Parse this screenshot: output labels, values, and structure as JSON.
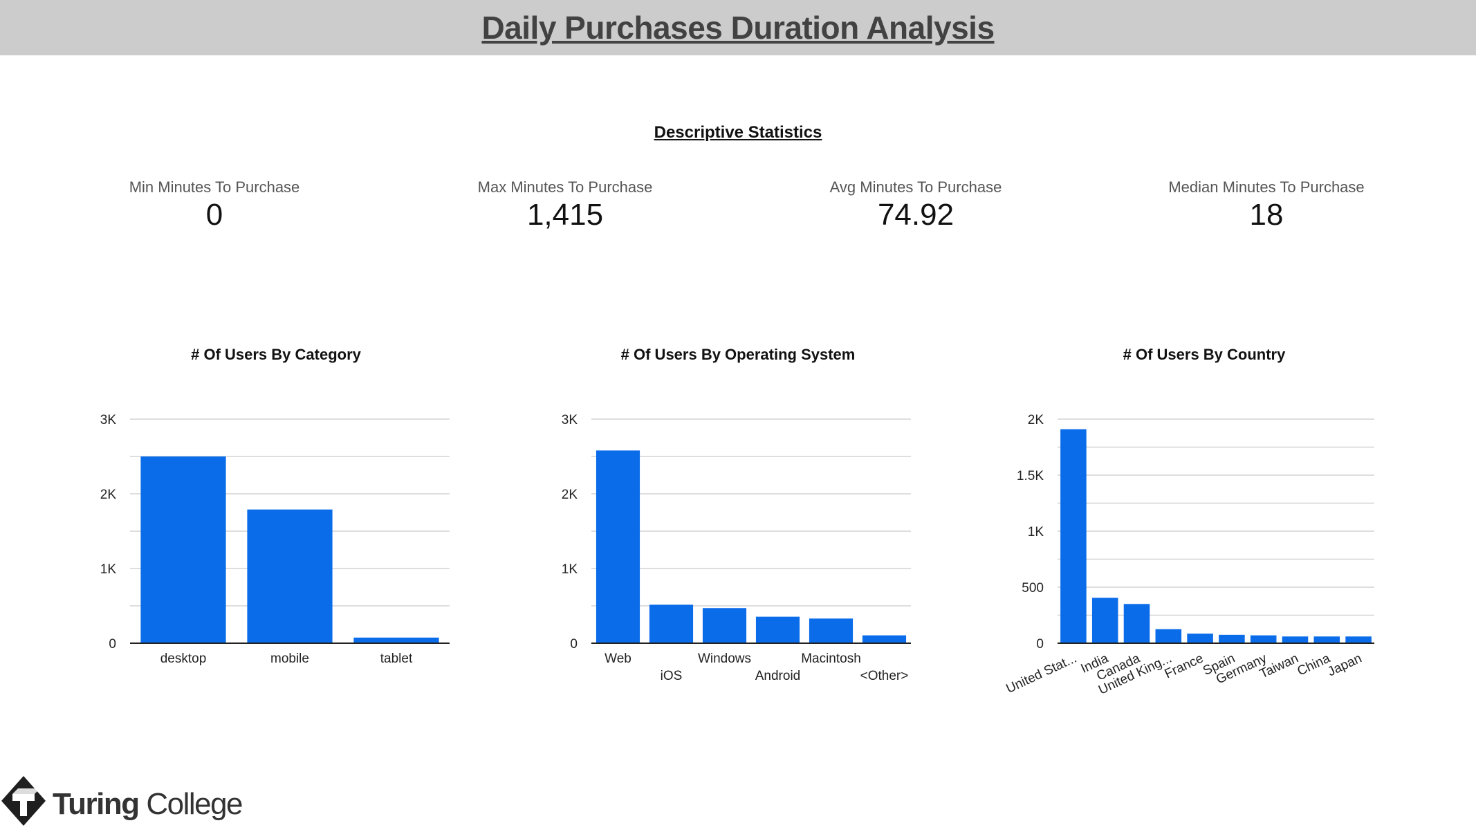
{
  "header": {
    "title": "Daily Purchases  Duration Analysis"
  },
  "stats": {
    "section_title": "Descriptive Statistics",
    "items": [
      {
        "label": "Min Minutes To Purchase",
        "value": "0"
      },
      {
        "label": "Max Minutes To Purchase",
        "value": "1,415"
      },
      {
        "label": "Avg Minutes To Purchase",
        "value": "74.92"
      },
      {
        "label": "Median Minutes To Purchase",
        "value": "18"
      }
    ]
  },
  "colors": {
    "bar": "#0a6ce9",
    "grid": "#d3d3d3",
    "axis": "#222222",
    "header_bg": "#cccccc"
  },
  "chart_data": [
    {
      "type": "bar",
      "title": "# Of Users By Category",
      "categories": [
        "desktop",
        "mobile",
        "tablet"
      ],
      "values": [
        2500,
        1790,
        75
      ],
      "ylim": [
        0,
        3000
      ],
      "yticks": [
        0,
        1000,
        2000,
        3000
      ],
      "ytick_labels": [
        "0",
        "1K",
        "2K",
        "3K"
      ],
      "xlabel": "",
      "ylabel": "",
      "grid": true,
      "legend": "none"
    },
    {
      "type": "bar",
      "title": "# Of Users By Operating System",
      "categories": [
        "Web",
        "iOS",
        "Windows",
        "Android",
        "Macintosh",
        "<Other>"
      ],
      "values": [
        2580,
        515,
        470,
        355,
        330,
        105
      ],
      "ylim": [
        0,
        3000
      ],
      "yticks": [
        0,
        1000,
        2000,
        3000
      ],
      "ytick_labels": [
        "0",
        "1K",
        "2K",
        "3K"
      ],
      "xlabel": "",
      "ylabel": "",
      "grid": true,
      "legend": "none"
    },
    {
      "type": "bar",
      "title": "# Of Users By Country",
      "categories": [
        "United Stat...",
        "India",
        "Canada",
        "United King...",
        "France",
        "Spain",
        "Germany",
        "Taiwan",
        "China",
        "Japan"
      ],
      "values": [
        1910,
        405,
        350,
        125,
        85,
        75,
        70,
        60,
        60,
        60
      ],
      "ylim": [
        0,
        2000
      ],
      "yticks": [
        0,
        500,
        1000,
        1500,
        2000
      ],
      "ytick_labels": [
        "0",
        "500",
        "1K",
        "1.5K",
        "2K"
      ],
      "xlabel": "",
      "ylabel": "",
      "grid": true,
      "legend": "none"
    }
  ],
  "logo": {
    "text_bold": "Turing",
    "text_regular": " College"
  }
}
